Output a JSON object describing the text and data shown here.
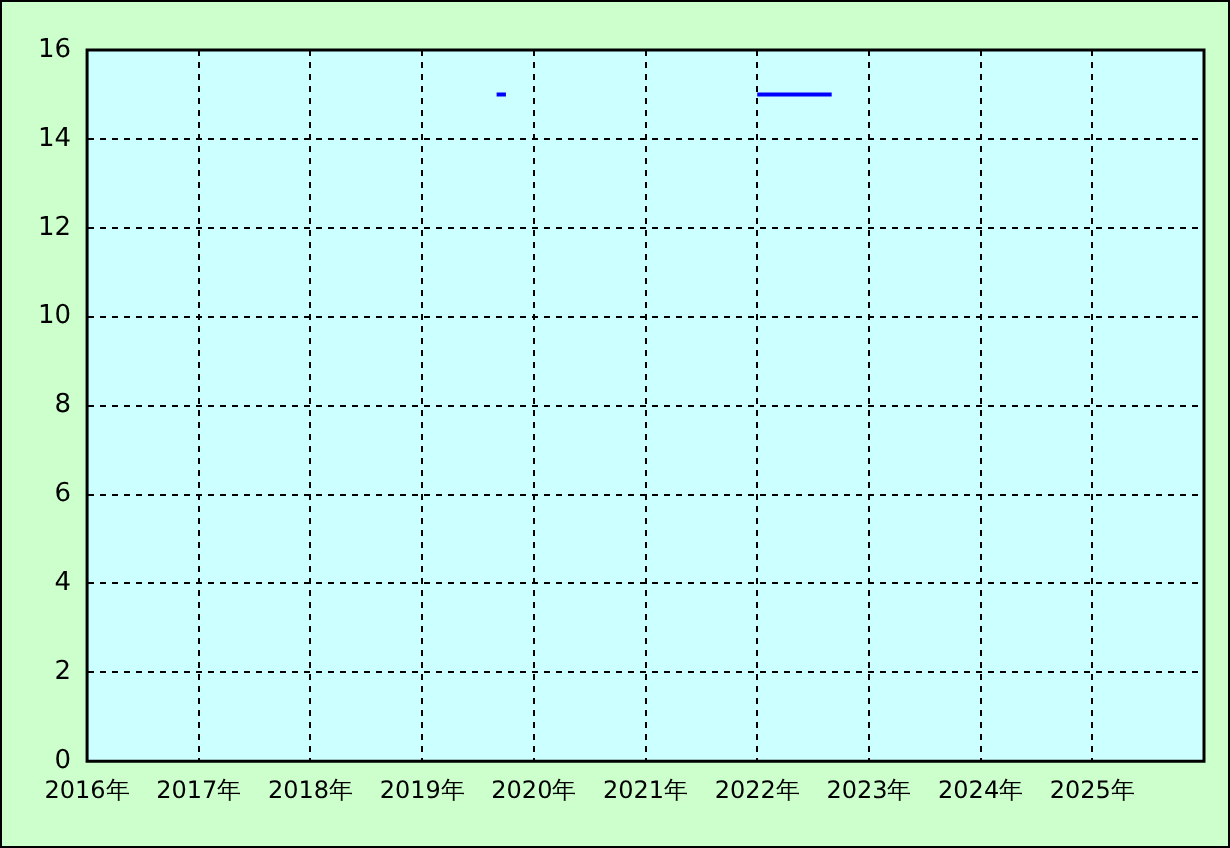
{
  "chart_data": {
    "type": "line",
    "x": [
      "2019-09",
      "2019-10",
      "2020-01",
      "2022-01",
      "2022-09"
    ],
    "series": [
      {
        "color": "#0000ff",
        "values": [
          15,
          15,
          null,
          15,
          15
        ]
      }
    ],
    "xlim": [
      "2016",
      "2026"
    ],
    "xticks": [
      {
        "value": "2016",
        "label": "2016年"
      },
      {
        "value": "2017",
        "label": "2017年"
      },
      {
        "value": "2018",
        "label": "2018年"
      },
      {
        "value": "2019",
        "label": "2019年"
      },
      {
        "value": "2020",
        "label": "2020年"
      },
      {
        "value": "2021",
        "label": "2021年"
      },
      {
        "value": "2022",
        "label": "2022年"
      },
      {
        "value": "2023",
        "label": "2023年"
      },
      {
        "value": "2024",
        "label": "2024年"
      },
      {
        "value": "2025",
        "label": "2025年"
      }
    ],
    "ylim": [
      0,
      16
    ],
    "yticks": [
      0,
      2,
      4,
      6,
      8,
      10,
      12,
      14,
      16
    ],
    "grid": true,
    "legend": false,
    "marker": "none",
    "line_style": "solid"
  }
}
